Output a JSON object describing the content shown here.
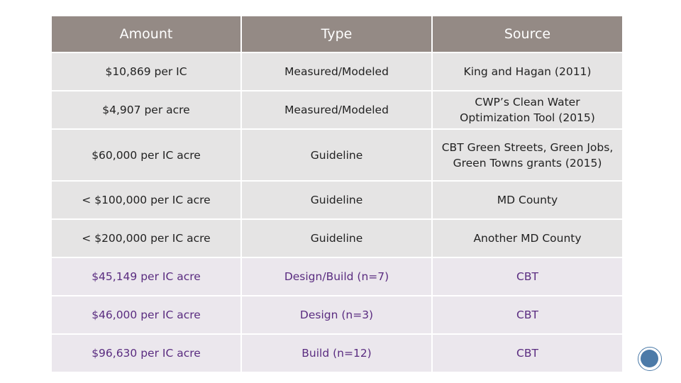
{
  "table": {
    "headers": {
      "amount": "Amount",
      "type": "Type",
      "source": "Source"
    },
    "rows": [
      {
        "amount": "$10,869 per IC",
        "type": "Measured/Modeled",
        "source": "King and Hagan (2011)"
      },
      {
        "amount": "$4,907 per acre",
        "type": "Measured/Modeled",
        "source": "CWP’s Clean Water Optimization Tool (2015)"
      },
      {
        "amount": "$60,000 per IC acre",
        "type": "Guideline",
        "source": "CBT Green Streets, Green Jobs, Green Towns grants (2015)"
      },
      {
        "amount": "< $100,000 per IC acre",
        "type": "Guideline",
        "source": "MD County"
      },
      {
        "amount": "< $200,000 per IC acre",
        "type": "Guideline",
        "source": "Another MD County"
      },
      {
        "amount": "$45,149 per IC acre",
        "type": "Design/Build (n=7)",
        "source": "CBT"
      },
      {
        "amount": "$46,000 per IC acre",
        "type": "Design (n=3)",
        "source": "CBT"
      },
      {
        "amount": "$96,630 per IC acre",
        "type": "Build (n=12)",
        "source": "CBT"
      }
    ]
  },
  "colors": {
    "header_bg": "#948a85",
    "row_bg": "#e5e4e4",
    "highlight_row_bg": "#ebe7ed",
    "highlight_text": "#5a2c80",
    "badge": "#4b7aa8"
  }
}
